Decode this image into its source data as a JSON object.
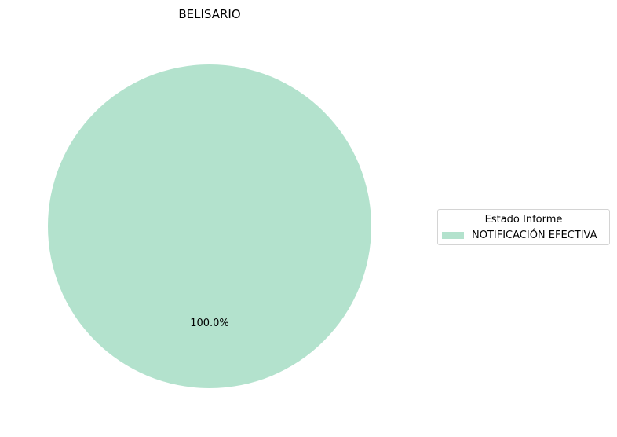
{
  "chart_data": {
    "type": "pie",
    "title": "BELISARIO",
    "slices": [
      {
        "label": "NOTIFICACIÓN EFECTIVA",
        "value": 100.0,
        "pct_label": "100.0%",
        "color": "#b3e2cd"
      }
    ],
    "legend": {
      "title": "Estado Informe",
      "placement": "right"
    },
    "grid": false
  }
}
